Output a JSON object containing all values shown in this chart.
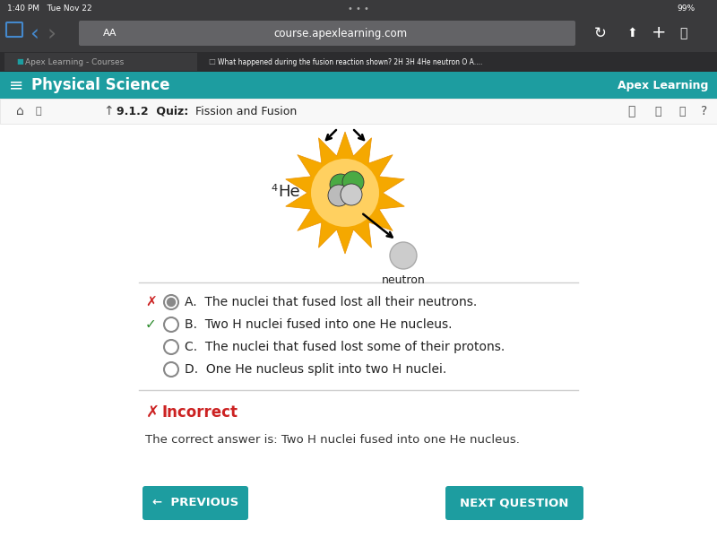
{
  "teal_bar_color": "#1d9da0",
  "white_bg": "#ffffff",
  "dark_browser_bg": "#3a3a3c",
  "medium_gray": "#636366",
  "light_gray_bar": "#e5e5ea",
  "tab_active_color": "#2c2c2e",
  "tab_inactive_color": "#3a3a3c",
  "time_text": "1:40 PM   Tue Nov 22",
  "url_text": "course.apexlearning.com",
  "tab1_text": "Apex Learning - Courses",
  "tab2_text": "What happened during the fusion reaction shown? 2H 3Η 4He neutron O A....",
  "section_title": "Physical Science",
  "apex_logo": "🐺 Apex Learning",
  "breadcrumb_bold": "9.1.2  Quiz:",
  "breadcrumb_normal": "  Fission and Fusion",
  "he_label": "4He",
  "neutron_label": "neutron",
  "option_a_text": "The nuclei that fused lost all their neutrons.",
  "option_b_text": "Two H nuclei fused into one He nucleus.",
  "option_c_text": "The nuclei that fused lost some of their protons.",
  "option_d_text": "One He nucleus split into two H nuclei.",
  "incorrect_text": "Incorrect",
  "correct_answer_text": "The correct answer is: Two H nuclei fused into one He nucleus.",
  "prev_button_text": "←  PREVIOUS",
  "next_button_text": "NEXT QUESTION",
  "button_color": "#1d9da0",
  "red_color": "#cc2222",
  "green_color": "#2a8a2a",
  "separator_color": "#d0d0d0",
  "star_outer_color": "#f5a623",
  "star_inner_color": "#ffd060",
  "star_tip_color": "#f5a623"
}
